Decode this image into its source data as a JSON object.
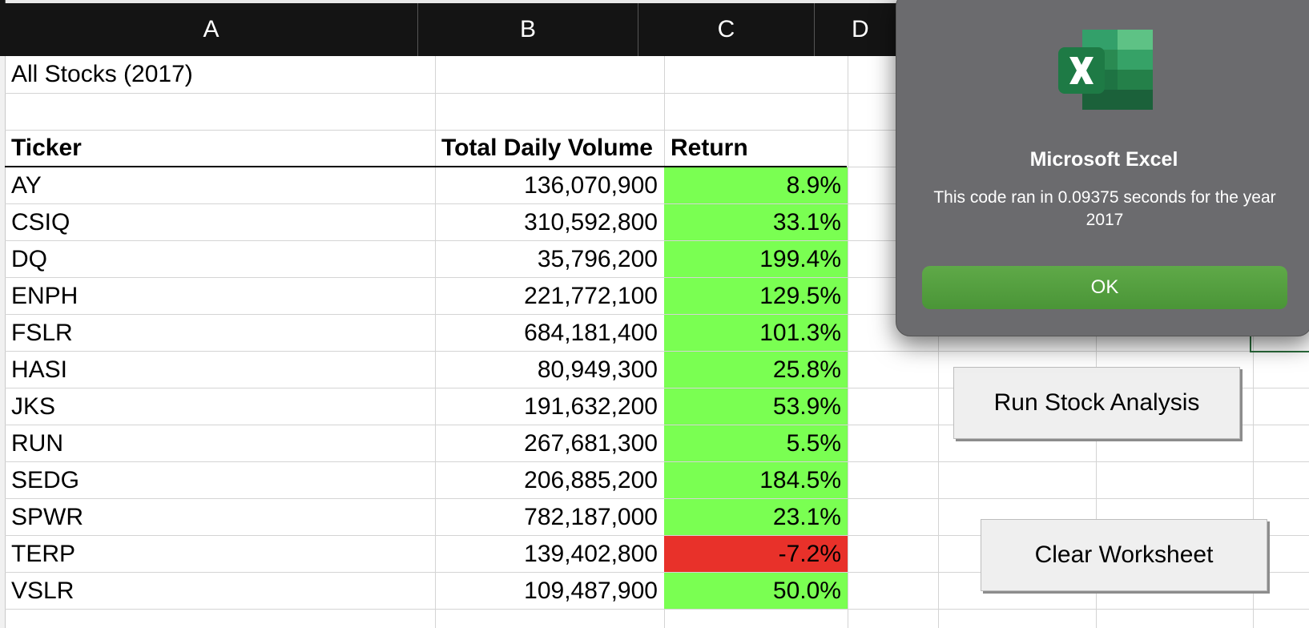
{
  "columns": [
    "A",
    "B",
    "C",
    "D"
  ],
  "sheet": {
    "title": "All Stocks (2017)",
    "headers": {
      "ticker": "Ticker",
      "volume": "Total Daily Volume",
      "return": "Return"
    },
    "rows": [
      {
        "ticker": "AY",
        "volume": "136,070,900",
        "return": "8.9%",
        "status": "positive"
      },
      {
        "ticker": "CSIQ",
        "volume": "310,592,800",
        "return": "33.1%",
        "status": "positive"
      },
      {
        "ticker": "DQ",
        "volume": "35,796,200",
        "return": "199.4%",
        "status": "positive"
      },
      {
        "ticker": "ENPH",
        "volume": "221,772,100",
        "return": "129.5%",
        "status": "positive"
      },
      {
        "ticker": "FSLR",
        "volume": "684,181,400",
        "return": "101.3%",
        "status": "positive"
      },
      {
        "ticker": "HASI",
        "volume": "80,949,300",
        "return": "25.8%",
        "status": "positive"
      },
      {
        "ticker": "JKS",
        "volume": "191,632,200",
        "return": "53.9%",
        "status": "positive"
      },
      {
        "ticker": "RUN",
        "volume": "267,681,300",
        "return": "5.5%",
        "status": "positive"
      },
      {
        "ticker": "SEDG",
        "volume": "206,885,200",
        "return": "184.5%",
        "status": "positive"
      },
      {
        "ticker": "SPWR",
        "volume": "782,187,000",
        "return": "23.1%",
        "status": "positive"
      },
      {
        "ticker": "TERP",
        "volume": "139,402,800",
        "return": "-7.2%",
        "status": "negative"
      },
      {
        "ticker": "VSLR",
        "volume": "109,487,900",
        "return": "50.0%",
        "status": "positive"
      }
    ]
  },
  "buttons": {
    "run": "Run Stock Analysis",
    "clear": "Clear Worksheet"
  },
  "dialog": {
    "title": "Microsoft Excel",
    "message": "This code ran in 0.09375 seconds for the year 2017",
    "ok": "OK",
    "icon": "excel-app-icon"
  },
  "colors": {
    "positive": "#7aff52",
    "negative": "#e8312a",
    "header_bg": "#141414",
    "ok_button": "#53a03e"
  }
}
